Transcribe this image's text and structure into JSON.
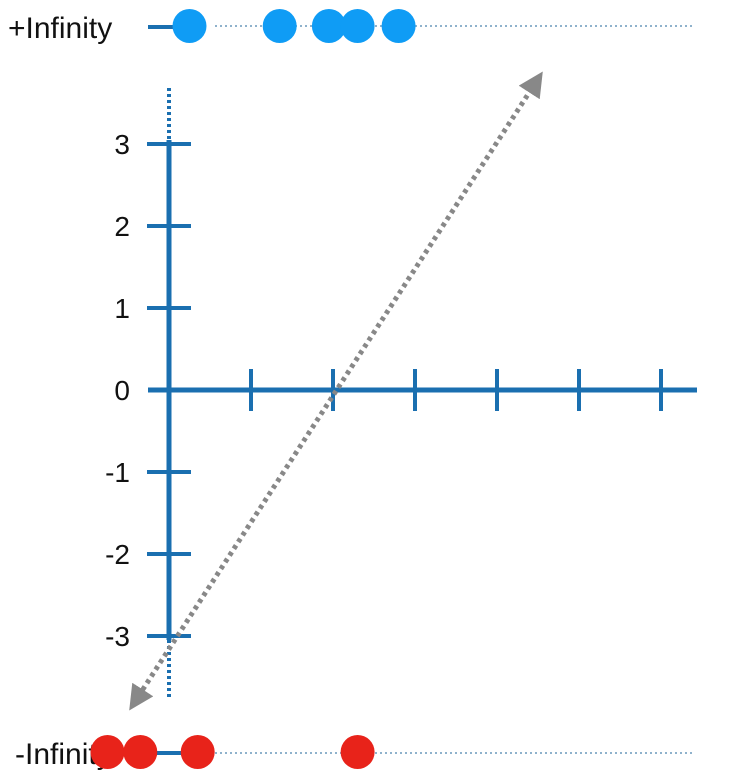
{
  "labels": {
    "pos_infinity": "+Infinity",
    "neg_infinity": "-Infinity"
  },
  "chart_data": {
    "type": "scatter",
    "y_ticks": [
      "3",
      "2",
      "1",
      "0",
      "-1",
      "-2",
      "-3"
    ],
    "y_range": [
      -3,
      3
    ],
    "x_tick_count": 6,
    "top_points_x": [
      0.25,
      1.35,
      1.95,
      2.3,
      2.8
    ],
    "bottom_points_x": [
      -0.75,
      -0.35,
      0.35,
      2.3
    ],
    "trend_arrow": {
      "style": "dotted",
      "bidirectional": true
    }
  },
  "colors": {
    "axis": "#1a6fb0",
    "blue_dot": "#0f9cf5",
    "red_dot": "#e8231a",
    "dotted_line": "#8fb2cc",
    "arrow": "#888888",
    "text": "#111111"
  }
}
